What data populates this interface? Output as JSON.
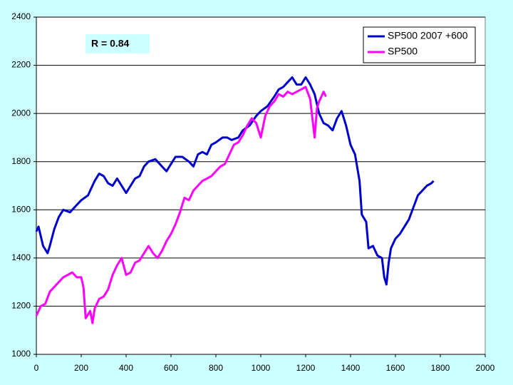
{
  "chart_data": {
    "type": "line",
    "annotation": "R = 0.84",
    "series": [
      {
        "name": "SP500 2007 +600",
        "color": "#0000cc",
        "x": [
          0,
          10,
          30,
          50,
          60,
          80,
          100,
          120,
          150,
          180,
          200,
          230,
          260,
          280,
          300,
          320,
          340,
          360,
          380,
          400,
          420,
          440,
          460,
          480,
          500,
          530,
          560,
          580,
          600,
          620,
          650,
          680,
          700,
          720,
          740,
          760,
          780,
          800,
          830,
          850,
          870,
          900,
          920,
          950,
          980,
          1000,
          1030,
          1060,
          1080,
          1100,
          1120,
          1140,
          1160,
          1180,
          1200,
          1220,
          1240,
          1260,
          1280,
          1300,
          1320,
          1340,
          1360,
          1380,
          1400,
          1420,
          1440,
          1450,
          1470,
          1480,
          1500,
          1520,
          1540,
          1550,
          1560,
          1570,
          1580,
          1600,
          1620,
          1640,
          1660,
          1680,
          1700,
          1720,
          1740,
          1760,
          1770
        ],
        "values": [
          1510,
          1530,
          1450,
          1420,
          1450,
          1520,
          1570,
          1600,
          1590,
          1620,
          1640,
          1660,
          1720,
          1750,
          1740,
          1710,
          1700,
          1730,
          1700,
          1670,
          1700,
          1730,
          1740,
          1780,
          1800,
          1810,
          1780,
          1760,
          1790,
          1820,
          1820,
          1800,
          1780,
          1830,
          1840,
          1830,
          1870,
          1880,
          1900,
          1900,
          1890,
          1900,
          1930,
          1950,
          1990,
          2010,
          2030,
          2070,
          2100,
          2110,
          2130,
          2150,
          2120,
          2120,
          2150,
          2120,
          2080,
          2000,
          1960,
          1950,
          1930,
          1980,
          2010,
          1950,
          1870,
          1830,
          1720,
          1580,
          1550,
          1440,
          1450,
          1410,
          1400,
          1320,
          1290,
          1380,
          1440,
          1480,
          1500,
          1530,
          1560,
          1610,
          1660,
          1680,
          1700,
          1710,
          1720
        ]
      },
      {
        "name": "SP500",
        "color": "#ff00ff",
        "x": [
          0,
          20,
          40,
          60,
          80,
          100,
          120,
          140,
          160,
          180,
          200,
          210,
          220,
          240,
          250,
          260,
          280,
          300,
          320,
          340,
          360,
          380,
          400,
          420,
          440,
          460,
          480,
          500,
          520,
          540,
          560,
          580,
          600,
          620,
          640,
          660,
          680,
          700,
          720,
          740,
          760,
          780,
          800,
          820,
          840,
          860,
          880,
          900,
          920,
          940,
          960,
          980,
          1000,
          1020,
          1040,
          1060,
          1080,
          1100,
          1120,
          1140,
          1160,
          1180,
          1200,
          1220,
          1240,
          1250,
          1260,
          1280,
          1290
        ],
        "values": [
          1160,
          1200,
          1210,
          1260,
          1280,
          1300,
          1320,
          1330,
          1340,
          1320,
          1320,
          1280,
          1150,
          1180,
          1130,
          1190,
          1230,
          1240,
          1270,
          1330,
          1370,
          1400,
          1330,
          1340,
          1380,
          1390,
          1420,
          1450,
          1420,
          1400,
          1430,
          1470,
          1500,
          1540,
          1590,
          1650,
          1640,
          1680,
          1700,
          1720,
          1730,
          1740,
          1760,
          1780,
          1790,
          1830,
          1870,
          1880,
          1910,
          1950,
          1980,
          1960,
          1900,
          1990,
          2030,
          2050,
          2080,
          2070,
          2090,
          2080,
          2090,
          2100,
          2110,
          2060,
          1900,
          2020,
          2050,
          2090,
          2070
        ]
      }
    ],
    "xlim": [
      0,
      2000
    ],
    "xticks": [
      0,
      200,
      400,
      600,
      800,
      1000,
      1200,
      1400,
      1600,
      1800,
      2000
    ],
    "ylim": [
      1000,
      2400
    ],
    "yticks": [
      1000,
      1200,
      1400,
      1600,
      1800,
      2000,
      2200,
      2400
    ],
    "grid": true,
    "legend": "top-right"
  }
}
